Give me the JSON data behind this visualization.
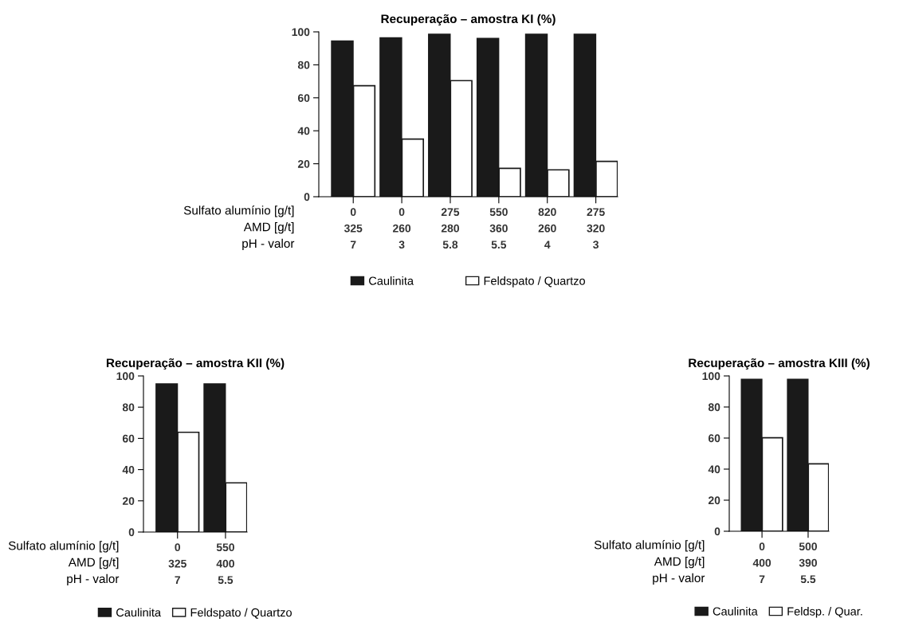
{
  "chart_data": [
    {
      "type": "bar",
      "title": "Recuperação – amostra KI (%)",
      "categories": [
        "0\n325\n7",
        "0\n260\n3",
        "275\n280\n5.8",
        "550\n360\n5.5",
        "820\n260\n4",
        "275\n320\n3"
      ],
      "annotations": [
        "Sulfato alumínio [g/t]",
        "AMD [g/t]",
        "pH - valor"
      ],
      "ylim": [
        0,
        100
      ],
      "yticks": [
        0,
        20,
        40,
        60,
        80,
        100
      ],
      "grid": false,
      "legend": "bottom",
      "series": [
        {
          "name": "Caulinita",
          "color": "#1a1a1a",
          "values": [
            94.4,
            96.3,
            98.5,
            96,
            98.5,
            98.5
          ]
        },
        {
          "name": "Feldspato / Quartzo",
          "color": "#ffffff",
          "values": [
            67.3,
            35,
            70.4,
            17.2,
            16.3,
            21.4
          ]
        }
      ]
    },
    {
      "type": "bar",
      "title": "Recuperação – amostra KII (%)",
      "categories": [
        "0\n325\n7",
        "550\n400\n5.5"
      ],
      "annotations": [
        "Sulfato alumínio [g/t]",
        "AMD [g/t]",
        "pH - valor"
      ],
      "ylim": [
        0,
        100
      ],
      "yticks": [
        0,
        20,
        40,
        60,
        80,
        100
      ],
      "grid": false,
      "legend": "bottom",
      "series": [
        {
          "name": "Caulinita",
          "color": "#1a1a1a",
          "values": [
            94.9,
            94.9
          ]
        },
        {
          "name": "Feldspato / Quartzo",
          "color": "#ffffff",
          "values": [
            63.9,
            31.5
          ]
        }
      ]
    },
    {
      "type": "bar",
      "title": "Recuperação – amostra KIII (%)",
      "categories": [
        "0\n400\n7",
        "500\n390\n5.5"
      ],
      "annotations": [
        "Sulfato alumínio [g/t]",
        "AMD [g/t]",
        "pH - valor"
      ],
      "ylim": [
        0,
        100
      ],
      "yticks": [
        0,
        20,
        40,
        60,
        80,
        100
      ],
      "grid": false,
      "legend": "bottom",
      "series": [
        {
          "name": "Caulinita",
          "color": "#1a1a1a",
          "values": [
            97.8,
            97.8
          ]
        },
        {
          "name": "Feldsp. / Quar.",
          "color": "#ffffff",
          "values": [
            60.2,
            43.4
          ]
        }
      ]
    }
  ]
}
